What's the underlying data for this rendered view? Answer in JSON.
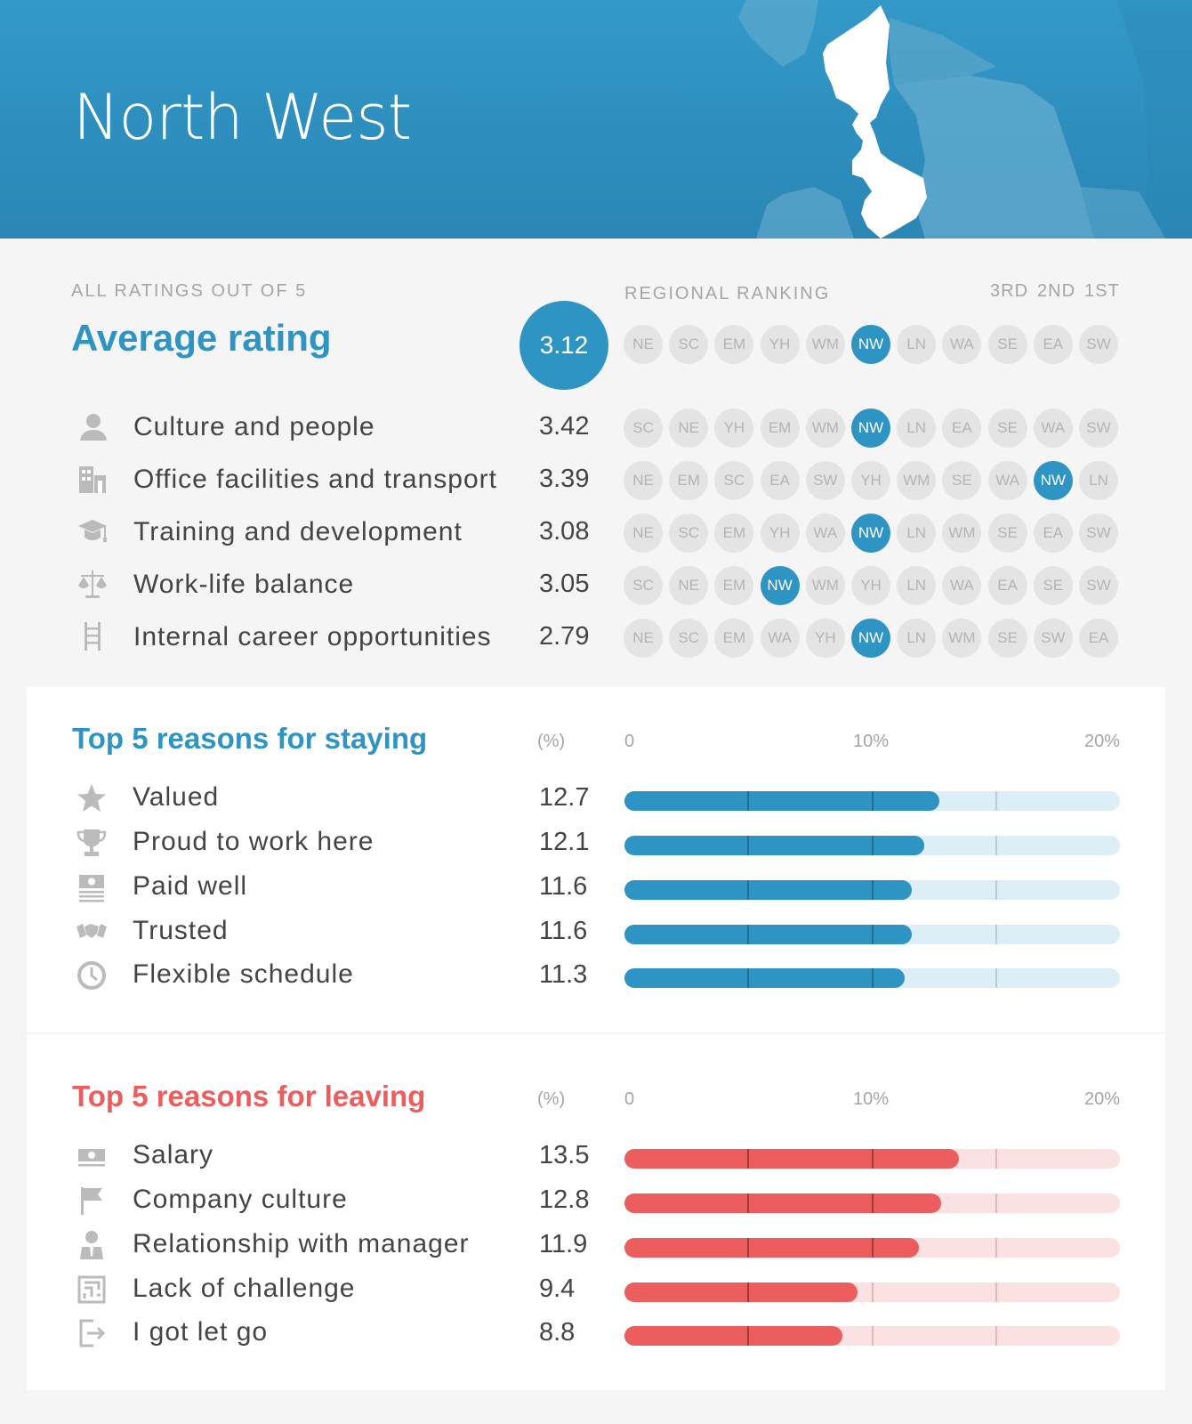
{
  "header": {
    "region": "North West"
  },
  "ratings": {
    "scale_note": "ALL RATINGS OUT OF 5",
    "average_label": "Average rating",
    "average_value": "3.12",
    "ranking_label": "REGIONAL RANKING",
    "rank_positions": [
      "3RD",
      "2ND",
      "1ST"
    ],
    "average_ranking": [
      "NE",
      "SC",
      "EM",
      "YH",
      "WM",
      "NW",
      "LN",
      "WA",
      "SE",
      "EA",
      "SW"
    ],
    "highlight_region": "NW",
    "categories": [
      {
        "icon": "person-icon",
        "label": "Culture and people",
        "value": "3.42",
        "ranking": [
          "SC",
          "NE",
          "YH",
          "EM",
          "WM",
          "NW",
          "LN",
          "EA",
          "SE",
          "WA",
          "SW"
        ]
      },
      {
        "icon": "building-icon",
        "label": "Office facilities and transport",
        "value": "3.39",
        "ranking": [
          "NE",
          "EM",
          "SC",
          "EA",
          "SW",
          "YH",
          "WM",
          "SE",
          "WA",
          "NW",
          "LN"
        ]
      },
      {
        "icon": "graduation-cap-icon",
        "label": "Training and development",
        "value": "3.08",
        "ranking": [
          "NE",
          "SC",
          "EM",
          "YH",
          "WA",
          "NW",
          "LN",
          "WM",
          "SE",
          "EA",
          "SW"
        ]
      },
      {
        "icon": "scales-icon",
        "label": "Work-life balance",
        "value": "3.05",
        "ranking": [
          "SC",
          "NE",
          "EM",
          "NW",
          "WM",
          "YH",
          "LN",
          "WA",
          "EA",
          "SE",
          "SW"
        ]
      },
      {
        "icon": "ladder-icon",
        "label": "Internal career opportunities",
        "value": "2.79",
        "ranking": [
          "NE",
          "SC",
          "EM",
          "WA",
          "YH",
          "NW",
          "LN",
          "WM",
          "SE",
          "SW",
          "EA"
        ]
      }
    ]
  },
  "staying": {
    "title": "Top 5 reasons for staying",
    "unit": "(%)",
    "axis": {
      "min_label": "0",
      "mid_label": "10%",
      "max_label": "20%"
    },
    "items": [
      {
        "icon": "star-icon",
        "label": "Valued",
        "value": "12.7"
      },
      {
        "icon": "trophy-icon",
        "label": "Proud to work here",
        "value": "12.1"
      },
      {
        "icon": "banknote-stack-icon",
        "label": "Paid well",
        "value": "11.6"
      },
      {
        "icon": "handshake-icon",
        "label": "Trusted",
        "value": "11.6"
      },
      {
        "icon": "clock-icon",
        "label": "Flexible schedule",
        "value": "11.3"
      }
    ],
    "colors": {
      "fill": "#2e94c4",
      "track": "#deeef6",
      "tick": "#1f6e94",
      "tick_light": "#b8cfd9"
    }
  },
  "leaving": {
    "title": "Top 5 reasons for leaving",
    "unit": "(%)",
    "axis": {
      "min_label": "0",
      "mid_label": "10%",
      "max_label": "20%"
    },
    "items": [
      {
        "icon": "banknote-icon",
        "label": "Salary",
        "value": "13.5"
      },
      {
        "icon": "flag-icon",
        "label": "Company culture",
        "value": "12.8"
      },
      {
        "icon": "manager-icon",
        "label": "Relationship with manager",
        "value": "11.9"
      },
      {
        "icon": "maze-icon",
        "label": "Lack of challenge",
        "value": "9.4"
      },
      {
        "icon": "exit-icon",
        "label": "I got let go",
        "value": "8.8"
      }
    ],
    "colors": {
      "fill": "#ec5d5d",
      "track": "#fbe1e1",
      "tick": "#a33a3a",
      "tick_light": "#e0b8b8"
    }
  },
  "chart_data": [
    {
      "type": "bar",
      "title": "Top 5 reasons for staying",
      "ylabel": "(%)",
      "categories": [
        "Valued",
        "Proud to work here",
        "Paid well",
        "Trusted",
        "Flexible schedule"
      ],
      "values": [
        12.7,
        12.1,
        11.6,
        11.6,
        11.3
      ],
      "ylim": [
        0,
        20
      ]
    },
    {
      "type": "bar",
      "title": "Top 5 reasons for leaving",
      "ylabel": "(%)",
      "categories": [
        "Salary",
        "Company culture",
        "Relationship with manager",
        "Lack of challenge",
        "I got let go"
      ],
      "values": [
        13.5,
        12.8,
        11.9,
        9.4,
        8.8
      ],
      "ylim": [
        0,
        20
      ]
    }
  ]
}
